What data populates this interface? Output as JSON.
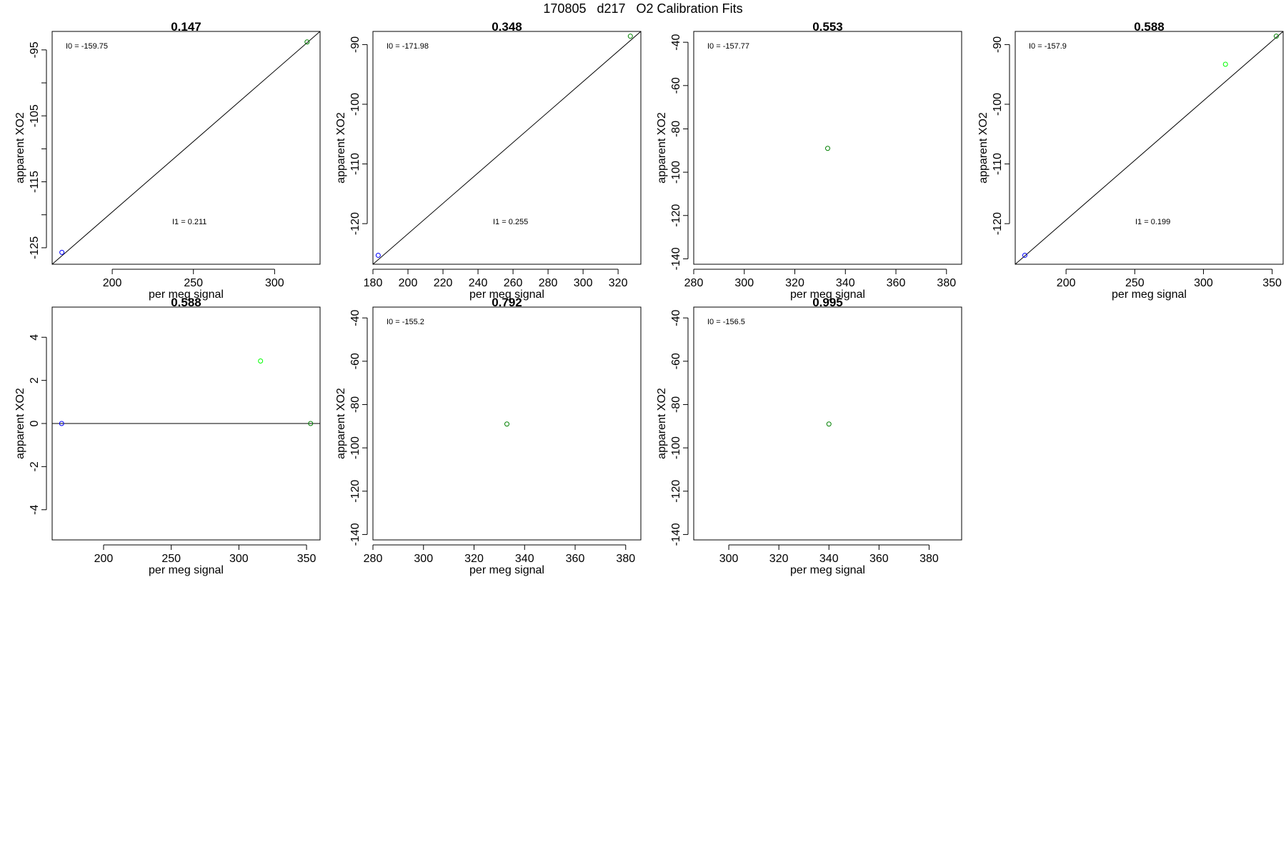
{
  "figure": {
    "title": "170805   d217   O2 Calibration Fits"
  },
  "colors": {
    "blue": "#0000ff",
    "green": "#008000",
    "lightgreen": "#00ff00",
    "axis": "#000000"
  },
  "chart_data": [
    {
      "type": "scatter",
      "title": "0.147",
      "xlabel": "per meg signal",
      "ylabel": "apparent XO2",
      "xlim": [
        163,
        328
      ],
      "ylim": [
        -127.5,
        -92.2
      ],
      "xticks": [
        200,
        250,
        300
      ],
      "yticks": [
        -95,
        -100,
        -105,
        -110,
        -115,
        -120,
        -125
      ],
      "ytick_labels_shown": [
        "-95",
        "-105",
        "-115",
        "-125"
      ],
      "annotations": [
        "I0 =  -159.75",
        "I1 =  0.211"
      ],
      "fit_line": [
        [
          163,
          -127.5
        ],
        [
          328,
          -92.2
        ]
      ],
      "points": [
        {
          "x": 169,
          "y": -125.7,
          "color": "blue"
        },
        {
          "x": 320,
          "y": -93.8,
          "color": "green"
        }
      ]
    },
    {
      "type": "scatter",
      "title": "0.348",
      "xlabel": "per meg signal",
      "ylabel": "apparent XO2",
      "xlim": [
        180,
        333
      ],
      "ylim": [
        -126.8,
        -87.8
      ],
      "xticks": [
        180,
        200,
        220,
        240,
        260,
        280,
        300,
        320
      ],
      "yticks": [
        -90,
        -100,
        -110,
        -120
      ],
      "ytick_labels_shown": [
        "-90",
        "-100",
        "-110",
        "-120"
      ],
      "annotations": [
        "I0 =  -171.98",
        "I1 =  0.255"
      ],
      "fit_line": [
        [
          180,
          -126.8
        ],
        [
          333,
          -87.8
        ]
      ],
      "points": [
        {
          "x": 183,
          "y": -125.3,
          "color": "blue"
        },
        {
          "x": 327,
          "y": -88.6,
          "color": "green"
        }
      ]
    },
    {
      "type": "scatter",
      "title": "0.553",
      "xlabel": "per meg signal",
      "ylabel": "apparent XO2",
      "xlim": [
        280,
        386
      ],
      "ylim": [
        -142.5,
        -35
      ],
      "xticks": [
        280,
        300,
        320,
        340,
        360,
        380
      ],
      "yticks": [
        -40,
        -60,
        -80,
        -100,
        -120,
        -140
      ],
      "ytick_labels_shown": [
        "-40",
        "-60",
        "-80",
        "-100",
        "-120",
        "-140"
      ],
      "annotations": [
        "I0 =  -157.77"
      ],
      "fit_line": [],
      "points": [
        {
          "x": 333,
          "y": -89,
          "color": "green"
        }
      ]
    },
    {
      "type": "scatter",
      "title": "0.588",
      "xlabel": "per meg signal",
      "ylabel": "apparent XO2",
      "xlim": [
        163,
        358
      ],
      "ylim": [
        -126.8,
        -87.8
      ],
      "xticks": [
        200,
        250,
        300,
        350
      ],
      "yticks": [
        -90,
        -100,
        -110,
        -120
      ],
      "ytick_labels_shown": [
        "-90",
        "-100",
        "-110",
        "-120"
      ],
      "annotations": [
        "I0 =  -157.9",
        "I1 =  0.199"
      ],
      "fit_line": [
        [
          163,
          -126.8
        ],
        [
          358,
          -87.8
        ]
      ],
      "points": [
        {
          "x": 170,
          "y": -125.3,
          "color": "blue"
        },
        {
          "x": 316,
          "y": -93.3,
          "color": "lightgreen"
        },
        {
          "x": 353,
          "y": -88.6,
          "color": "green"
        }
      ]
    },
    {
      "type": "scatter",
      "title": "0.588",
      "xlabel": "per meg signal",
      "ylabel": "apparent XO2",
      "xlim": [
        162,
        360
      ],
      "ylim": [
        -5.4,
        5.4
      ],
      "xticks": [
        200,
        250,
        300,
        350
      ],
      "yticks": [
        4,
        2,
        0,
        -2,
        -4
      ],
      "ytick_labels_shown": [
        "4",
        "2",
        "0",
        "-2",
        "-4"
      ],
      "annotations": [],
      "fit_line": [
        [
          162,
          0
        ],
        [
          360,
          0
        ]
      ],
      "points": [
        {
          "x": 169,
          "y": 0,
          "color": "blue"
        },
        {
          "x": 316,
          "y": 2.9,
          "color": "lightgreen"
        },
        {
          "x": 353,
          "y": 0,
          "color": "green"
        }
      ]
    },
    {
      "type": "scatter",
      "title": "0.792",
      "xlabel": "per meg signal",
      "ylabel": "apparent XO2",
      "xlim": [
        280,
        386
      ],
      "ylim": [
        -142.5,
        -35
      ],
      "xticks": [
        280,
        300,
        320,
        340,
        360,
        380
      ],
      "yticks": [
        -40,
        -60,
        -80,
        -100,
        -120,
        -140
      ],
      "ytick_labels_shown": [
        "-40",
        "-60",
        "-80",
        "-100",
        "-120",
        "-140"
      ],
      "annotations": [
        "I0 =  -155.2"
      ],
      "fit_line": [],
      "points": [
        {
          "x": 333,
          "y": -89,
          "color": "green"
        }
      ]
    },
    {
      "type": "scatter",
      "title": "0.995",
      "xlabel": "per meg signal",
      "ylabel": "apparent XO2",
      "xlim": [
        286,
        393
      ],
      "ylim": [
        -142.5,
        -35
      ],
      "xticks": [
        300,
        320,
        340,
        360,
        380
      ],
      "yticks": [
        -40,
        -60,
        -80,
        -100,
        -120,
        -140
      ],
      "ytick_labels_shown": [
        "-40",
        "-60",
        "-80",
        "-100",
        "-120",
        "-140"
      ],
      "annotations": [
        "I0 =  -156.5"
      ],
      "fit_line": [],
      "points": [
        {
          "x": 340,
          "y": -89,
          "color": "green"
        }
      ]
    }
  ]
}
